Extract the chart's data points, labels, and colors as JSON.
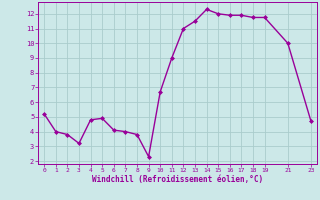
{
  "x": [
    0,
    1,
    2,
    3,
    4,
    5,
    6,
    7,
    8,
    9,
    10,
    11,
    12,
    13,
    14,
    15,
    16,
    17,
    18,
    19,
    21,
    23
  ],
  "y": [
    5.2,
    4.0,
    3.8,
    3.2,
    4.8,
    4.9,
    4.1,
    4.0,
    3.8,
    2.3,
    6.7,
    9.0,
    11.0,
    11.5,
    12.3,
    12.0,
    11.9,
    11.9,
    11.75,
    11.75,
    10.0,
    4.7
  ],
  "line_color": "#990099",
  "marker": "D",
  "marker_size": 2.0,
  "bg_color": "#cce8e8",
  "grid_color": "#aacccc",
  "xlabel": "Windchill (Refroidissement éolien,°C)",
  "xlim": [
    -0.5,
    23.5
  ],
  "ylim": [
    1.8,
    12.8
  ],
  "xticks": [
    0,
    1,
    2,
    3,
    4,
    5,
    6,
    7,
    8,
    9,
    10,
    11,
    12,
    13,
    14,
    15,
    16,
    17,
    18,
    19,
    21,
    23
  ],
  "yticks": [
    2,
    3,
    4,
    5,
    6,
    7,
    8,
    9,
    10,
    11,
    12
  ],
  "line_width": 1.0
}
